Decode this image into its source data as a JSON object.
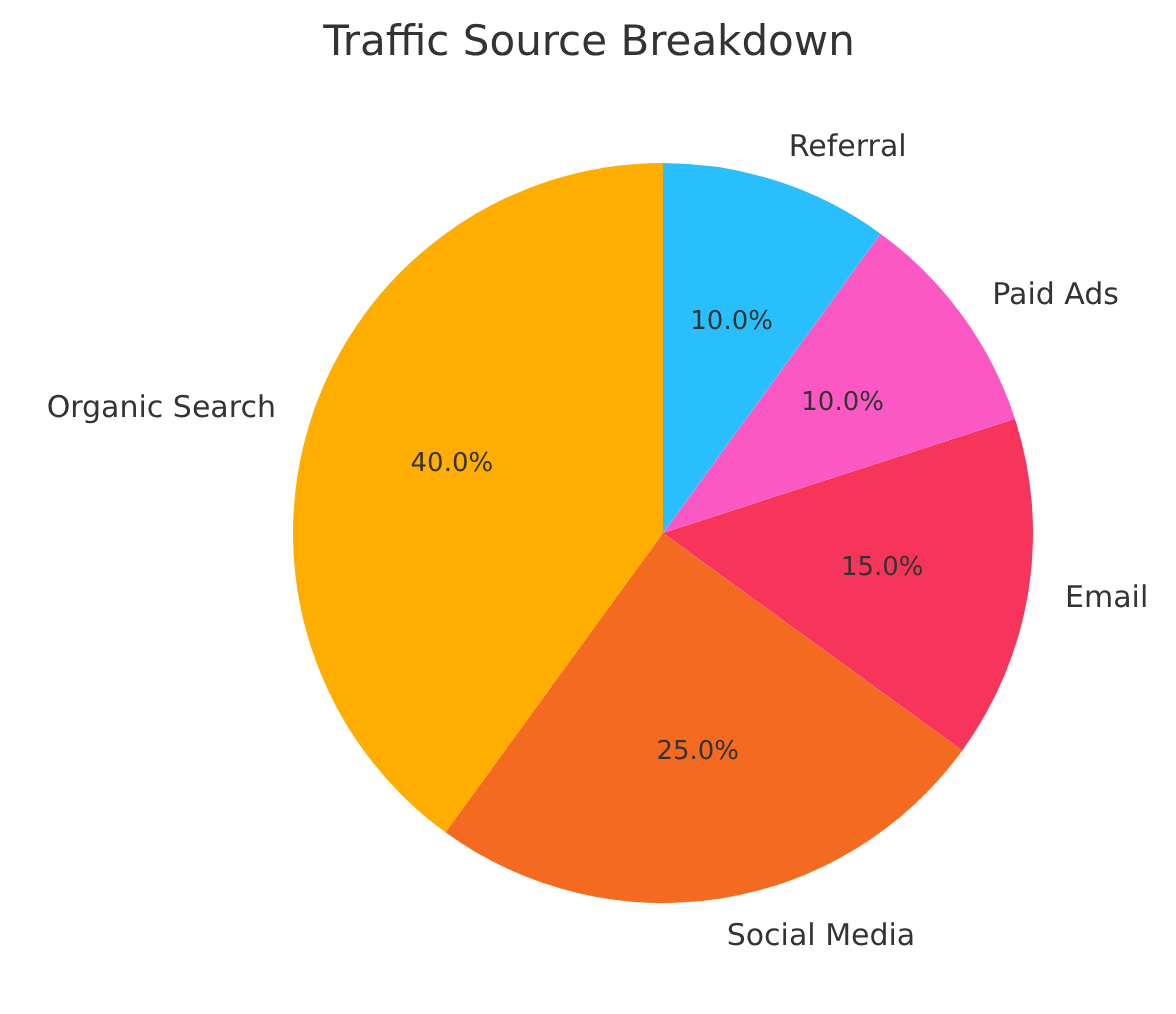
{
  "chart_data": {
    "type": "pie",
    "title": "Traffic Source Breakdown",
    "categories": [
      "Organic Search",
      "Social Media",
      "Email",
      "Paid Ads",
      "Referral"
    ],
    "values": [
      40,
      25,
      15,
      10,
      10
    ],
    "colors": [
      "#ffad00",
      "#f46a20",
      "#f7345a",
      "#fb58c4",
      "#29bffe"
    ],
    "value_labels": [
      "40.0%",
      "25.0%",
      "15.0%",
      "10.0%",
      "10.0%"
    ]
  }
}
